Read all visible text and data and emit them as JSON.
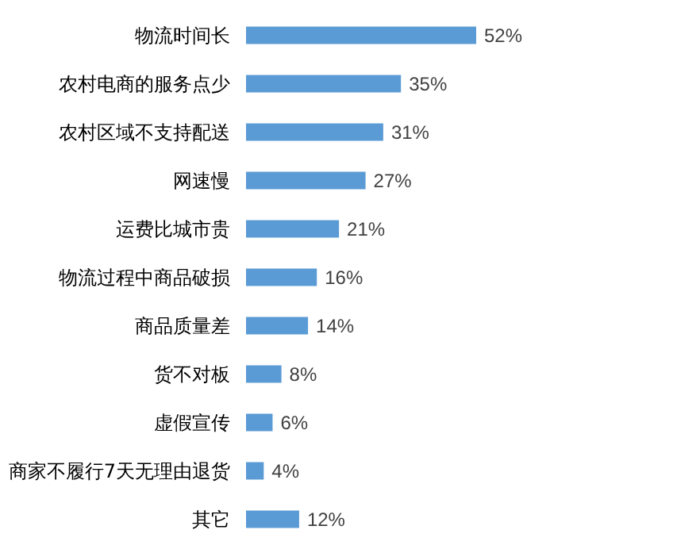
{
  "chart_data": {
    "type": "bar",
    "orientation": "horizontal",
    "categories": [
      "物流时间长",
      "农村电商的服务点少",
      "农村区域不支持配送",
      "网速慢",
      "运费比城市贵",
      "物流过程中商品破损",
      "商品质量差",
      "货不对板",
      "虚假宣传",
      "商家不履行7天无理由退货",
      "其它"
    ],
    "values": [
      52,
      35,
      31,
      27,
      21,
      16,
      14,
      8,
      6,
      4,
      12
    ],
    "value_labels": [
      "52%",
      "35%",
      "31%",
      "27%",
      "21%",
      "16%",
      "14%",
      "8%",
      "6%",
      "4%",
      "12%"
    ],
    "color": "#5b9bd5"
  }
}
